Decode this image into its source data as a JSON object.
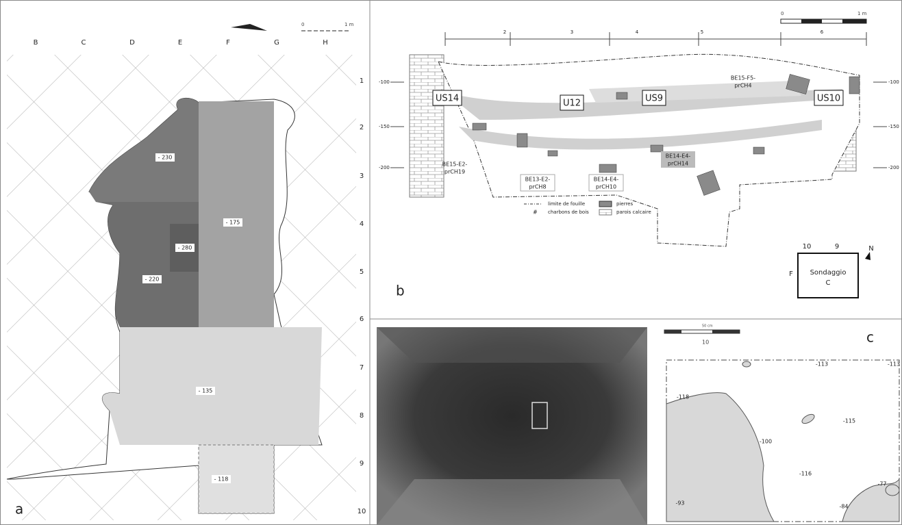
{
  "panel_a": {
    "label": "a",
    "columns": [
      "B",
      "C",
      "D",
      "E",
      "F",
      "G",
      "H"
    ],
    "scale": [
      "0",
      "1 m"
    ],
    "depths": [
      "- 230",
      "- 280",
      "- 220",
      "- 175",
      "- 135",
      "- 118"
    ]
  },
  "rows": [
    "1",
    "2",
    "3",
    "4",
    "5",
    "6",
    "7",
    "8",
    "9",
    "10"
  ],
  "panel_b": {
    "label": "b",
    "scale": [
      "0",
      "1 m"
    ],
    "sections": [
      "2",
      "3",
      "4",
      "5",
      "6"
    ],
    "depths_left": [
      "-100",
      "-150",
      "-200"
    ],
    "depths_right": [
      "-100",
      "-150",
      "-200"
    ],
    "units": [
      "US14",
      "U12",
      "US9",
      "US10"
    ],
    "samples": [
      [
        "BE15-F5-",
        "prCH4"
      ],
      [
        "BE15-E2-",
        "prCH19"
      ],
      [
        "BE13-E2-",
        "prCH8"
      ],
      [
        "BE14-E4-",
        "prCH14"
      ],
      [
        "BE14-E4-",
        "prCH10"
      ]
    ],
    "legend": [
      "limite de fouille",
      "charbons de bois",
      "pierres",
      "parois calcaire"
    ],
    "inset": {
      "cols": [
        "10",
        "9"
      ],
      "north": "N",
      "row": "F",
      "name": [
        "Sondaggio",
        "C"
      ]
    }
  },
  "panel_c": {
    "label": "c",
    "scale": "50 cm",
    "column": "10",
    "elevations": [
      "-113",
      "-113",
      "-118",
      "-115",
      "-100",
      "-116",
      "-77",
      "-93",
      "-84"
    ]
  }
}
